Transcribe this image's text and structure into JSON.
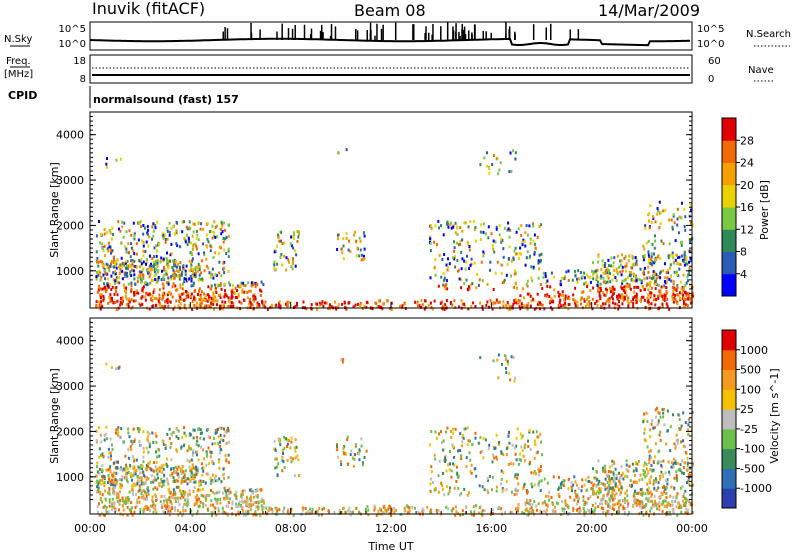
{
  "header": {
    "station": "Inuvik (fitACF)",
    "beam": "Beam 08",
    "date": "14/Mar/2009"
  },
  "strip_labels": {
    "nsky": "N.Sky",
    "nsky_ticks": [
      "10^5",
      "10^0"
    ],
    "nsearch": "N.Search",
    "nsearch_ticks": [
      "10^5",
      "10^0"
    ],
    "freq_top": "Freq.",
    "freq_unit": "[MHz]",
    "freq_ticks": [
      "18",
      "8"
    ],
    "nave": "Nave",
    "nave_ticks": [
      "60",
      "0"
    ],
    "cpid": "CPID",
    "cpid_value": "normalsound (fast) 157"
  },
  "chart_data": [
    {
      "type": "heatmap",
      "name": "power",
      "ylabel": "Slant Range [km]",
      "yticks": [
        "1000",
        "2000",
        "3000",
        "4000"
      ],
      "ylim": [
        180,
        4500
      ],
      "xlim": [
        0,
        24
      ],
      "colorbar_label": "Power [dB]",
      "colorbar_ticks": [
        "4",
        "8",
        "12",
        "16",
        "20",
        "24",
        "28"
      ],
      "colorbar_colors": [
        "#0000ff",
        "#2a5bb5",
        "#2e8b57",
        "#7ac943",
        "#e8d200",
        "#f5a000",
        "#f06a00",
        "#e00000"
      ],
      "background": "#ffffff"
    },
    {
      "type": "heatmap",
      "name": "velocity",
      "ylabel": "Slant Range [km]",
      "yticks": [
        "1000",
        "2000",
        "3000",
        "4000"
      ],
      "ylim": [
        180,
        4500
      ],
      "xlim": [
        0,
        24
      ],
      "colorbar_label": "Velocity [m s^-1]",
      "colorbar_ticks": [
        "1000",
        "500",
        "100",
        "25",
        "-25",
        "-100",
        "-500",
        "-1000"
      ],
      "colorbar_colors": [
        "#2a3fb0",
        "#2e6fb5",
        "#3a8a5a",
        "#6cc04a",
        "#bdbdbd",
        "#f5c000",
        "#f59a20",
        "#f06a00",
        "#e00000"
      ],
      "background": "#ffffff"
    }
  ],
  "xaxis": {
    "ticks": [
      "00:00",
      "04:00",
      "08:00",
      "12:00",
      "16:00",
      "20:00",
      "00:00"
    ],
    "label": "Time UT"
  }
}
